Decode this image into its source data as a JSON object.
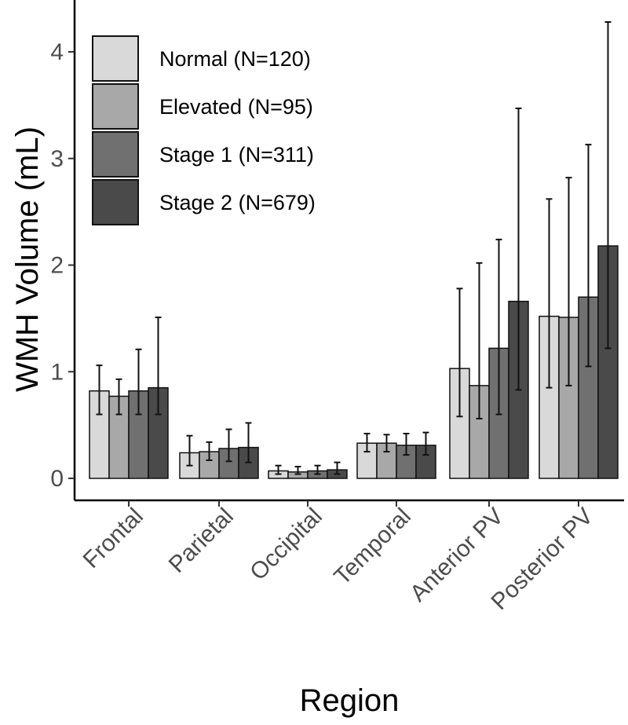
{
  "chart_data": {
    "type": "bar",
    "title": "",
    "xlabel": "Region",
    "ylabel": "WMH Volume (mL)",
    "categories": [
      "Frontal",
      "Parietal",
      "Occipital",
      "Temporal",
      "Anterior PV",
      "Posterior PV"
    ],
    "ylim": [
      0,
      4.3
    ],
    "yticks": [
      "0",
      "1",
      "2",
      "3",
      "4"
    ],
    "error_bars": true,
    "grid": false,
    "legend_position": "top-left",
    "series": [
      {
        "name": "Normal (N=120)",
        "color": "#d9d9d9",
        "values": [
          0.82,
          0.24,
          0.07,
          0.33,
          1.03,
          1.52
        ],
        "err_low": [
          0.6,
          0.12,
          0.04,
          0.25,
          0.58,
          0.85
        ],
        "err_high": [
          1.06,
          0.4,
          0.12,
          0.42,
          1.78,
          2.62
        ]
      },
      {
        "name": "Elevated (N=95)",
        "color": "#a8a8a8",
        "values": [
          0.77,
          0.25,
          0.06,
          0.33,
          0.87,
          1.51
        ],
        "err_low": [
          0.6,
          0.17,
          0.04,
          0.25,
          0.56,
          0.87
        ],
        "err_high": [
          0.93,
          0.34,
          0.11,
          0.41,
          2.02,
          2.82
        ]
      },
      {
        "name": "Stage 1 (N=311)",
        "color": "#707070",
        "values": [
          0.82,
          0.28,
          0.07,
          0.31,
          1.22,
          1.7
        ],
        "err_low": [
          0.6,
          0.16,
          0.04,
          0.22,
          0.6,
          1.05
        ],
        "err_high": [
          1.21,
          0.46,
          0.12,
          0.42,
          2.24,
          3.13
        ]
      },
      {
        "name": "Stage 2 (N=679)",
        "color": "#4a4a4a",
        "values": [
          0.85,
          0.29,
          0.08,
          0.31,
          1.66,
          2.18
        ],
        "err_low": [
          0.6,
          0.15,
          0.04,
          0.22,
          0.83,
          1.22
        ],
        "err_high": [
          1.51,
          0.52,
          0.15,
          0.43,
          3.47,
          4.28
        ]
      }
    ]
  }
}
